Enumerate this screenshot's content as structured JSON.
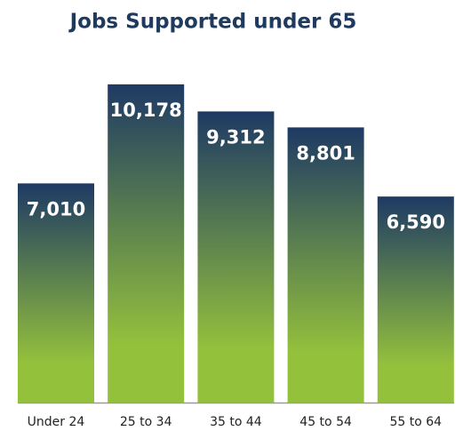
{
  "chart_data": {
    "type": "bar",
    "title": "Jobs Supported under 65",
    "categories": [
      "Under 24",
      "25 to 34",
      "35 to 44",
      "45 to 54",
      "55 to 64"
    ],
    "values": [
      7010,
      10178,
      9312,
      8801,
      6590
    ],
    "value_labels": [
      "7,010",
      "10,178",
      "9,312",
      "8,801",
      "6,590"
    ],
    "gradient": [
      "#1e3a64",
      "#94c13c"
    ],
    "ylim": [
      0,
      11000
    ]
  }
}
